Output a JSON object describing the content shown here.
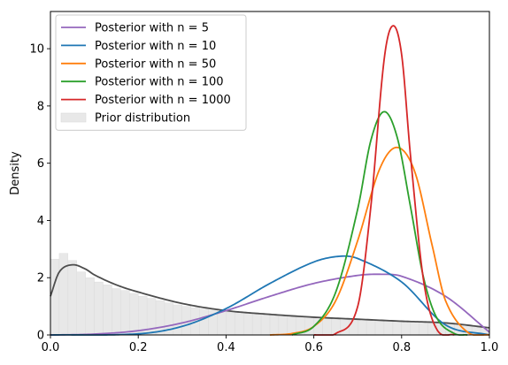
{
  "chart_data": {
    "type": "line",
    "title": "",
    "xlabel": "",
    "ylabel": "Density",
    "xlim": [
      0,
      1
    ],
    "ylim": [
      0,
      11.3
    ],
    "xticks": [
      0,
      0.2,
      0.4,
      0.6,
      0.8,
      1.0
    ],
    "xtick_labels": [
      "0.0",
      "0.2",
      "0.4",
      "0.6",
      "0.8",
      "1.0"
    ],
    "yticks": [
      0,
      2,
      4,
      6,
      8,
      10
    ],
    "ytick_labels": [
      "0",
      "2",
      "4",
      "6",
      "8",
      "10"
    ],
    "grid": false,
    "legend_position": "top-left",
    "series": [
      {
        "name": "Posterior with n = 5",
        "color": "#9467bd",
        "x": [
          0.0,
          0.1,
          0.2,
          0.3,
          0.4,
          0.5,
          0.6,
          0.7,
          0.75,
          0.8,
          0.9,
          1.0
        ],
        "y": [
          0.0,
          0.03,
          0.15,
          0.42,
          0.85,
          1.35,
          1.8,
          2.08,
          2.12,
          2.05,
          1.35,
          0.1
        ]
      },
      {
        "name": "Posterior with n = 10",
        "color": "#1f77b4",
        "x": [
          0.0,
          0.2,
          0.3,
          0.4,
          0.5,
          0.6,
          0.66,
          0.7,
          0.8,
          0.9,
          1.0
        ],
        "y": [
          0.0,
          0.04,
          0.3,
          0.92,
          1.8,
          2.55,
          2.75,
          2.67,
          1.85,
          0.35,
          0.0
        ]
      },
      {
        "name": "Posterior with n = 50",
        "color": "#ff7f0e",
        "x": [
          0.5,
          0.55,
          0.6,
          0.65,
          0.7,
          0.75,
          0.79,
          0.83,
          0.87,
          0.9,
          0.95,
          1.0
        ],
        "y": [
          0.0,
          0.05,
          0.3,
          1.2,
          3.3,
          5.8,
          6.55,
          5.7,
          3.1,
          1.2,
          0.1,
          0.0
        ]
      },
      {
        "name": "Posterior with n = 100",
        "color": "#2ca02c",
        "x": [
          0.55,
          0.6,
          0.65,
          0.7,
          0.73,
          0.76,
          0.79,
          0.82,
          0.85,
          0.88,
          0.92,
          0.95
        ],
        "y": [
          0.0,
          0.3,
          1.5,
          4.4,
          6.8,
          7.8,
          6.9,
          4.5,
          2.0,
          0.6,
          0.05,
          0.0
        ]
      },
      {
        "name": "Posterior with n = 1000",
        "color": "#d62728",
        "x": [
          0.6,
          0.65,
          0.7,
          0.73,
          0.76,
          0.78,
          0.8,
          0.82,
          0.85,
          0.88,
          0.92
        ],
        "y": [
          0.0,
          0.05,
          1.0,
          4.5,
          9.6,
          10.8,
          9.8,
          6.3,
          1.9,
          0.2,
          0.0
        ]
      }
    ],
    "prior_distribution": {
      "name": "Prior distribution",
      "bar_color": "#e8e8e8",
      "kde_color": "#4d4d4d",
      "x": [
        0.0,
        0.02,
        0.05,
        0.08,
        0.1,
        0.15,
        0.2,
        0.3,
        0.4,
        0.5,
        0.6,
        0.7,
        0.8,
        0.9,
        1.0
      ],
      "y": [
        1.35,
        2.2,
        2.45,
        2.3,
        2.1,
        1.75,
        1.5,
        1.1,
        0.85,
        0.72,
        0.62,
        0.55,
        0.48,
        0.42,
        0.25
      ],
      "hist_bins": [
        0.0,
        0.02,
        0.04,
        0.06,
        0.08,
        0.1,
        0.12,
        0.14,
        0.16,
        0.18,
        0.2,
        0.22,
        0.24,
        0.26,
        0.28,
        0.3,
        0.32,
        0.34,
        0.36,
        0.38,
        0.4,
        0.42,
        0.44,
        0.46,
        0.48,
        0.5,
        0.52,
        0.54,
        0.56,
        0.58,
        0.6,
        0.62,
        0.64,
        0.66,
        0.68,
        0.7,
        0.72,
        0.74,
        0.76,
        0.78,
        0.8,
        0.82,
        0.84,
        0.86,
        0.88,
        0.9,
        0.92,
        0.94,
        0.96,
        0.98,
        1.0
      ],
      "hist_values": [
        2.65,
        2.85,
        2.6,
        2.2,
        2.0,
        1.85,
        1.75,
        1.62,
        1.55,
        1.45,
        1.35,
        1.28,
        1.2,
        1.12,
        1.05,
        1.0,
        0.95,
        0.9,
        0.87,
        0.83,
        0.8,
        0.78,
        0.75,
        0.73,
        0.7,
        0.68,
        0.66,
        0.64,
        0.62,
        0.6,
        0.58,
        0.57,
        0.55,
        0.53,
        0.52,
        0.5,
        0.5,
        0.48,
        0.47,
        0.46,
        0.45,
        0.44,
        0.43,
        0.42,
        0.41,
        0.4,
        0.38,
        0.36,
        0.32,
        0.25
      ]
    }
  }
}
